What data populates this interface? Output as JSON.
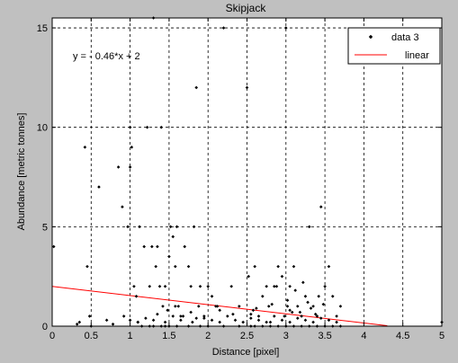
{
  "chart_data": {
    "type": "scatter",
    "title": "Skipjack",
    "xlabel": "Distance [pixel]",
    "ylabel": "Abundance [metric tonnes]",
    "xlim": [
      0,
      5
    ],
    "ylim": [
      0,
      15.5
    ],
    "xticks": [
      0,
      0.5,
      1,
      1.5,
      2,
      2.5,
      3,
      3.5,
      4,
      4.5,
      5
    ],
    "xtick_labels": [
      "0",
      "0.5",
      "1",
      "1.5",
      "2",
      "2.5",
      "3",
      "3.5",
      "4",
      "4.5",
      "5"
    ],
    "yticks": [
      0,
      5,
      10,
      15
    ],
    "ytick_labels": [
      "0",
      "5",
      "10",
      "15"
    ],
    "grid": true,
    "legend_position": "top-right",
    "annotation": "y = - 0.46*x + 2",
    "series": [
      {
        "name": "data 3",
        "kind": "scatter",
        "color": "#000000",
        "x": [
          0.02,
          0.32,
          0.35,
          0.42,
          0.45,
          0.48,
          0.6,
          0.7,
          0.78,
          0.85,
          0.9,
          0.92,
          0.97,
          1.0,
          1.0,
          1.02,
          1.05,
          1.08,
          1.1,
          1.12,
          1.18,
          1.22,
          1.25,
          1.28,
          1.3,
          1.33,
          1.35,
          1.38,
          1.4,
          1.42,
          1.45,
          1.5,
          1.52,
          1.55,
          1.58,
          1.6,
          1.62,
          1.65,
          1.7,
          1.75,
          1.78,
          1.82,
          1.85,
          1.88,
          1.9,
          1.95,
          2.0,
          2.05,
          2.1,
          2.15,
          2.2,
          2.3,
          2.4,
          2.5,
          2.55,
          2.6,
          2.65,
          2.7,
          2.75,
          2.8,
          2.85,
          2.9,
          2.95,
          3.0,
          3.02,
          3.05,
          3.1,
          3.15,
          3.2,
          3.25,
          3.3,
          3.35,
          3.4,
          3.45,
          3.5,
          3.55,
          3.6,
          3.65,
          3.7,
          5.0,
          0.5,
          1.15,
          1.25,
          1.3,
          1.4,
          1.45,
          1.5,
          1.6,
          1.75,
          1.9,
          2.0,
          2.2,
          2.4,
          2.6,
          2.7,
          2.8,
          2.9,
          3.0,
          3.1,
          3.2,
          3.3,
          3.4,
          3.5,
          3.6,
          3.7,
          1.0,
          1.1,
          1.2,
          1.3,
          1.45,
          1.55,
          1.65,
          1.8,
          1.95,
          2.05,
          2.15,
          2.25,
          2.35,
          2.45,
          2.55,
          2.65,
          2.75,
          2.85,
          2.95,
          3.05,
          3.15,
          3.25,
          3.35,
          3.45,
          3.55,
          3.65,
          1.35,
          1.48,
          1.58,
          1.68,
          1.78,
          2.12,
          2.32,
          2.58,
          2.78,
          2.98,
          3.08,
          3.28,
          3.38,
          2.52,
          2.88,
          3.12,
          3.22,
          3.42,
          2.62,
          2.82,
          3.02,
          3.18,
          3.32,
          3.48,
          1.85,
          2.55,
          3.05
        ],
        "y": [
          4,
          0.1,
          0.2,
          9,
          3,
          0.5,
          7,
          0.3,
          0.1,
          8,
          6,
          0.5,
          5,
          8,
          10,
          9,
          2,
          1.5,
          0.2,
          5,
          4,
          10,
          2,
          4,
          15.5,
          3,
          4,
          2,
          10,
          1,
          2,
          3.5,
          5,
          4.5,
          3,
          5,
          1,
          0.5,
          4,
          3,
          2,
          5,
          12,
          1,
          2,
          0.5,
          2,
          1.5,
          1,
          0.8,
          15,
          2,
          1,
          12,
          0,
          3,
          0.5,
          1.5,
          2,
          0.2,
          2,
          3,
          2.5,
          15,
          1,
          2,
          3,
          1,
          0.5,
          1.5,
          5,
          1,
          0.5,
          6,
          2,
          3,
          1.5,
          0.5,
          1,
          0.2,
          0,
          0,
          0,
          0,
          0,
          0,
          0,
          0,
          0,
          0,
          0,
          0,
          0,
          0,
          0,
          0,
          0,
          0,
          0,
          0,
          0,
          0,
          0,
          0,
          0,
          0.3,
          0.2,
          0.4,
          0.3,
          0.2,
          0.5,
          0.3,
          0.2,
          0.4,
          0.3,
          0.2,
          0.5,
          0.3,
          0.2,
          0.4,
          0.3,
          0.2,
          0.5,
          0.3,
          0.2,
          0.4,
          0.3,
          0.2,
          0.4,
          0.3,
          0.2,
          0.6,
          0.8,
          1,
          0.5,
          0.7,
          1,
          0.6,
          0.8,
          1,
          0.5,
          0.7,
          1.2,
          0.6,
          2.5,
          2,
          1.8,
          2.2,
          1.5,
          0.9,
          1.1,
          1.3,
          0.7,
          0.9,
          1.1,
          0.4,
          0.6,
          0.8
        ]
      },
      {
        "name": "linear",
        "kind": "line",
        "color": "#ff0000",
        "x": [
          0,
          4.3
        ],
        "y": [
          2,
          0.02
        ]
      }
    ]
  }
}
